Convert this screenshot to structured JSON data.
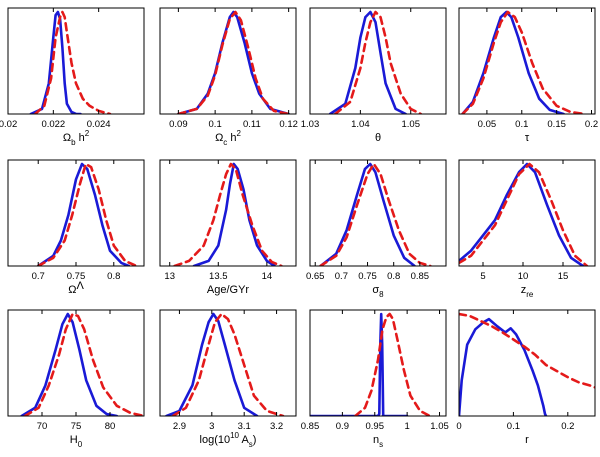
{
  "figure": {
    "series_names": [
      "blue-solid",
      "red-dashed"
    ],
    "colors": {
      "blue": "#1a1ad6",
      "red": "#e41a1a",
      "axis": "#000000",
      "text": "#000000"
    }
  },
  "chart_data": [
    {
      "type": "line",
      "xlim": [
        0.02,
        0.026
      ],
      "ticks": [
        0.02,
        0.022,
        0.024
      ],
      "tick_labels": [
        "0.02",
        "0.022",
        "0.024"
      ],
      "xlabel": "Ω_b h^2",
      "series": [
        {
          "x": [
            0.021,
            0.0215,
            0.0218,
            0.022,
            0.0221,
            0.0222,
            0.0223,
            0.0224,
            0.0225,
            0.0226,
            0.0228,
            0.023,
            0.0232
          ],
          "y": [
            0,
            0.05,
            0.3,
            0.75,
            0.97,
            1.0,
            0.93,
            0.65,
            0.3,
            0.1,
            0.02,
            0,
            0
          ]
        },
        {
          "x": [
            0.0212,
            0.0216,
            0.0219,
            0.0221,
            0.0223,
            0.0224,
            0.0225,
            0.0226,
            0.0228,
            0.023,
            0.0233,
            0.0236,
            0.024,
            0.0245
          ],
          "y": [
            0,
            0.08,
            0.35,
            0.75,
            0.95,
            1.0,
            0.95,
            0.8,
            0.5,
            0.3,
            0.15,
            0.08,
            0.03,
            0
          ]
        }
      ]
    },
    {
      "type": "line",
      "xlim": [
        0.085,
        0.122
      ],
      "ticks": [
        0.09,
        0.1,
        0.11,
        0.12
      ],
      "tick_labels": [
        "0.09",
        "0.1",
        "0.11",
        "0.12"
      ],
      "xlabel": "Ω_c h^2",
      "series": [
        {
          "x": [
            0.09,
            0.095,
            0.098,
            0.1,
            0.102,
            0.104,
            0.105,
            0.106,
            0.108,
            0.11,
            0.112,
            0.115,
            0.12
          ],
          "y": [
            0,
            0.05,
            0.2,
            0.4,
            0.7,
            0.95,
            1.0,
            0.95,
            0.7,
            0.4,
            0.2,
            0.05,
            0
          ]
        },
        {
          "x": [
            0.09,
            0.095,
            0.098,
            0.1,
            0.102,
            0.104,
            0.1055,
            0.107,
            0.109,
            0.111,
            0.113,
            0.116,
            0.12
          ],
          "y": [
            0,
            0.05,
            0.18,
            0.38,
            0.68,
            0.93,
            1.0,
            0.92,
            0.65,
            0.35,
            0.15,
            0.03,
            0
          ]
        }
      ]
    },
    {
      "type": "line",
      "xlim": [
        1.03,
        1.057
      ],
      "ticks": [
        1.03,
        1.04,
        1.05
      ],
      "tick_labels": [
        "1.03",
        "1.04",
        "1.05"
      ],
      "xlabel": "θ",
      "series": [
        {
          "x": [
            1.034,
            1.037,
            1.039,
            1.04,
            1.041,
            1.042,
            1.043,
            1.044,
            1.045,
            1.047,
            1.049
          ],
          "y": [
            0,
            0.1,
            0.45,
            0.75,
            0.95,
            1.0,
            0.9,
            0.6,
            0.3,
            0.05,
            0
          ]
        },
        {
          "x": [
            1.035,
            1.038,
            1.04,
            1.041,
            1.042,
            1.043,
            1.044,
            1.045,
            1.046,
            1.048,
            1.05,
            1.052
          ],
          "y": [
            0,
            0.12,
            0.45,
            0.7,
            0.9,
            1.0,
            0.95,
            0.75,
            0.5,
            0.2,
            0.05,
            0
          ]
        }
      ]
    },
    {
      "type": "line",
      "xlim": [
        0.01,
        0.205
      ],
      "ticks": [
        0.05,
        0.1,
        0.15,
        0.2
      ],
      "tick_labels": [
        "0.05",
        "0.1",
        "0.15",
        "0.2"
      ],
      "xlabel": "τ",
      "series": [
        {
          "x": [
            0.015,
            0.03,
            0.045,
            0.06,
            0.07,
            0.078,
            0.085,
            0.095,
            0.11,
            0.125,
            0.14,
            0.16
          ],
          "y": [
            0,
            0.12,
            0.4,
            0.75,
            0.95,
            1.0,
            0.95,
            0.75,
            0.4,
            0.15,
            0.04,
            0
          ]
        },
        {
          "x": [
            0.015,
            0.03,
            0.045,
            0.06,
            0.07,
            0.08,
            0.09,
            0.1,
            0.115,
            0.13,
            0.15,
            0.17,
            0.19
          ],
          "y": [
            0,
            0.1,
            0.35,
            0.7,
            0.9,
            1.0,
            0.95,
            0.8,
            0.5,
            0.25,
            0.08,
            0.02,
            0
          ]
        }
      ]
    },
    {
      "type": "line",
      "xlim": [
        0.66,
        0.84
      ],
      "ticks": [
        0.7,
        0.75,
        0.8
      ],
      "tick_labels": [
        "0.7",
        "0.75",
        "0.8"
      ],
      "xlabel": "Ω_Λ",
      "series": [
        {
          "x": [
            0.7,
            0.72,
            0.73,
            0.74,
            0.75,
            0.758,
            0.765,
            0.775,
            0.785,
            0.795,
            0.81,
            0.82
          ],
          "y": [
            0,
            0.1,
            0.25,
            0.5,
            0.85,
            1.0,
            0.95,
            0.7,
            0.4,
            0.15,
            0.03,
            0
          ]
        },
        {
          "x": [
            0.7,
            0.72,
            0.735,
            0.745,
            0.755,
            0.763,
            0.77,
            0.78,
            0.79,
            0.8,
            0.815,
            0.83
          ],
          "y": [
            0,
            0.08,
            0.25,
            0.5,
            0.8,
            1.0,
            0.97,
            0.75,
            0.45,
            0.2,
            0.05,
            0
          ]
        }
      ]
    },
    {
      "type": "line",
      "xlim": [
        12.9,
        14.3
      ],
      "ticks": [
        13,
        13.5,
        14
      ],
      "tick_labels": [
        "13",
        "13.5",
        "14"
      ],
      "xlabel": "Age/GYr",
      "series": [
        {
          "x": [
            13.25,
            13.4,
            13.5,
            13.58,
            13.62,
            13.66,
            13.7,
            13.76,
            13.82,
            13.9,
            14.0,
            14.08
          ],
          "y": [
            0,
            0.05,
            0.2,
            0.55,
            0.8,
            1.0,
            0.95,
            0.75,
            0.45,
            0.2,
            0.05,
            0
          ]
        },
        {
          "x": [
            13.05,
            13.2,
            13.35,
            13.45,
            13.52,
            13.58,
            13.63,
            13.68,
            13.75,
            13.85,
            13.95,
            14.05,
            14.15
          ],
          "y": [
            0,
            0.05,
            0.2,
            0.45,
            0.7,
            0.9,
            1.0,
            0.95,
            0.7,
            0.4,
            0.15,
            0.04,
            0
          ]
        }
      ]
    },
    {
      "type": "line",
      "xlim": [
        0.64,
        0.9
      ],
      "ticks": [
        0.65,
        0.7,
        0.75,
        0.8,
        0.85
      ],
      "tick_labels": [
        "0.65",
        "0.7",
        "0.75",
        "0.8",
        "0.85"
      ],
      "xlabel": "σ_8",
      "series": [
        {
          "x": [
            0.66,
            0.69,
            0.71,
            0.73,
            0.745,
            0.755,
            0.765,
            0.78,
            0.8,
            0.82,
            0.84
          ],
          "y": [
            0,
            0.12,
            0.35,
            0.7,
            0.95,
            1.0,
            0.92,
            0.65,
            0.3,
            0.08,
            0
          ]
        },
        {
          "x": [
            0.66,
            0.69,
            0.71,
            0.73,
            0.75,
            0.762,
            0.775,
            0.79,
            0.81,
            0.83,
            0.85,
            0.87
          ],
          "y": [
            0,
            0.1,
            0.28,
            0.6,
            0.9,
            1.0,
            0.9,
            0.65,
            0.35,
            0.12,
            0.03,
            0
          ]
        }
      ]
    },
    {
      "type": "line",
      "xlim": [
        2,
        19
      ],
      "ticks": [
        5,
        10,
        15
      ],
      "tick_labels": [
        "5",
        "10",
        "15"
      ],
      "xlabel": "z_re",
      "series": [
        {
          "x": [
            2,
            3.5,
            5,
            6.5,
            8,
            9.5,
            10.5,
            11.5,
            13,
            14.5,
            16,
            17.5
          ],
          "y": [
            0.05,
            0.15,
            0.3,
            0.45,
            0.7,
            0.92,
            1.0,
            0.92,
            0.6,
            0.3,
            0.08,
            0
          ]
        },
        {
          "x": [
            2,
            3.5,
            5,
            6.5,
            8,
            9.5,
            10.8,
            12,
            13.5,
            15,
            16.5,
            18
          ],
          "y": [
            0.03,
            0.1,
            0.25,
            0.4,
            0.65,
            0.9,
            1.0,
            0.92,
            0.65,
            0.35,
            0.1,
            0
          ]
        }
      ]
    },
    {
      "type": "line",
      "xlim": [
        65,
        85
      ],
      "ticks": [
        70,
        75,
        80
      ],
      "tick_labels": [
        "70",
        "75",
        "80"
      ],
      "xlabel": "H_0",
      "series": [
        {
          "x": [
            67,
            69,
            70.5,
            72,
            73,
            73.8,
            74.5,
            75.5,
            76.5,
            78,
            79.5,
            81
          ],
          "y": [
            0,
            0.08,
            0.3,
            0.65,
            0.9,
            1.0,
            0.92,
            0.65,
            0.35,
            0.1,
            0.02,
            0
          ]
        },
        {
          "x": [
            67.5,
            69.5,
            71,
            72.5,
            73.5,
            74.5,
            75.3,
            76.2,
            77.5,
            79,
            81,
            83,
            85
          ],
          "y": [
            0,
            0.08,
            0.3,
            0.6,
            0.85,
            1.0,
            0.98,
            0.85,
            0.55,
            0.28,
            0.1,
            0.03,
            0
          ]
        }
      ]
    },
    {
      "type": "line",
      "xlim": [
        2.84,
        3.26
      ],
      "ticks": [
        2.9,
        3,
        3.1,
        3.2
      ],
      "tick_labels": [
        "2.9",
        "3",
        "3.1",
        "3.2"
      ],
      "xlabel": "log(10^10 A_s)",
      "series": [
        {
          "x": [
            2.86,
            2.9,
            2.94,
            2.97,
            2.99,
            3.005,
            3.02,
            3.04,
            3.07,
            3.1,
            3.14
          ],
          "y": [
            0,
            0.05,
            0.3,
            0.7,
            0.92,
            1.0,
            0.93,
            0.7,
            0.35,
            0.08,
            0
          ]
        },
        {
          "x": [
            2.88,
            2.92,
            2.96,
            2.99,
            3.01,
            3.03,
            3.05,
            3.07,
            3.1,
            3.13,
            3.17,
            3.22
          ],
          "y": [
            0,
            0.08,
            0.35,
            0.7,
            0.92,
            1.0,
            0.95,
            0.8,
            0.5,
            0.2,
            0.05,
            0
          ]
        }
      ]
    },
    {
      "type": "line",
      "xlim": [
        0.85,
        1.06
      ],
      "ticks": [
        0.85,
        0.9,
        0.95,
        1,
        1.05
      ],
      "tick_labels": [
        "0.85",
        "0.9",
        "0.95",
        "1",
        "1.05"
      ],
      "xlabel": "n_s",
      "series": [
        {
          "x": [
            0.85,
            0.9,
            0.93,
            0.955,
            0.957,
            0.9585,
            0.96,
            0.9615,
            0.963,
            0.97,
            1.0
          ],
          "y": [
            0,
            0,
            0,
            0,
            0.02,
            0.7,
            1.0,
            0.7,
            0,
            0,
            0
          ]
        },
        {
          "x": [
            0.92,
            0.935,
            0.945,
            0.955,
            0.962,
            0.968,
            0.973,
            0.978,
            0.985,
            0.995,
            1.005,
            1.02,
            1.035
          ],
          "y": [
            0,
            0.08,
            0.25,
            0.55,
            0.85,
            0.97,
            1.0,
            0.95,
            0.75,
            0.45,
            0.2,
            0.05,
            0
          ]
        }
      ]
    },
    {
      "type": "line",
      "xlim": [
        0,
        0.25
      ],
      "ticks": [
        0,
        0.1,
        0.2
      ],
      "tick_labels": [
        "0",
        "0.1",
        "0.2"
      ],
      "xlabel": "r",
      "series": [
        {
          "x": [
            0,
            0.005,
            0.015,
            0.03,
            0.045,
            0.055,
            0.07,
            0.085,
            0.095,
            0.105,
            0.12,
            0.135,
            0.145,
            0.155,
            0.158,
            0.16
          ],
          "y": [
            0,
            0.35,
            0.7,
            0.85,
            0.92,
            0.95,
            0.88,
            0.82,
            0.86,
            0.8,
            0.65,
            0.45,
            0.3,
            0.1,
            0.02,
            0
          ]
        },
        {
          "x": [
            0,
            0.02,
            0.04,
            0.06,
            0.08,
            0.1,
            0.12,
            0.14,
            0.16,
            0.18,
            0.2,
            0.22,
            0.24,
            0.25
          ],
          "y": [
            1.0,
            0.98,
            0.93,
            0.88,
            0.82,
            0.75,
            0.68,
            0.6,
            0.5,
            0.44,
            0.38,
            0.33,
            0.3,
            0.28
          ]
        }
      ]
    }
  ]
}
